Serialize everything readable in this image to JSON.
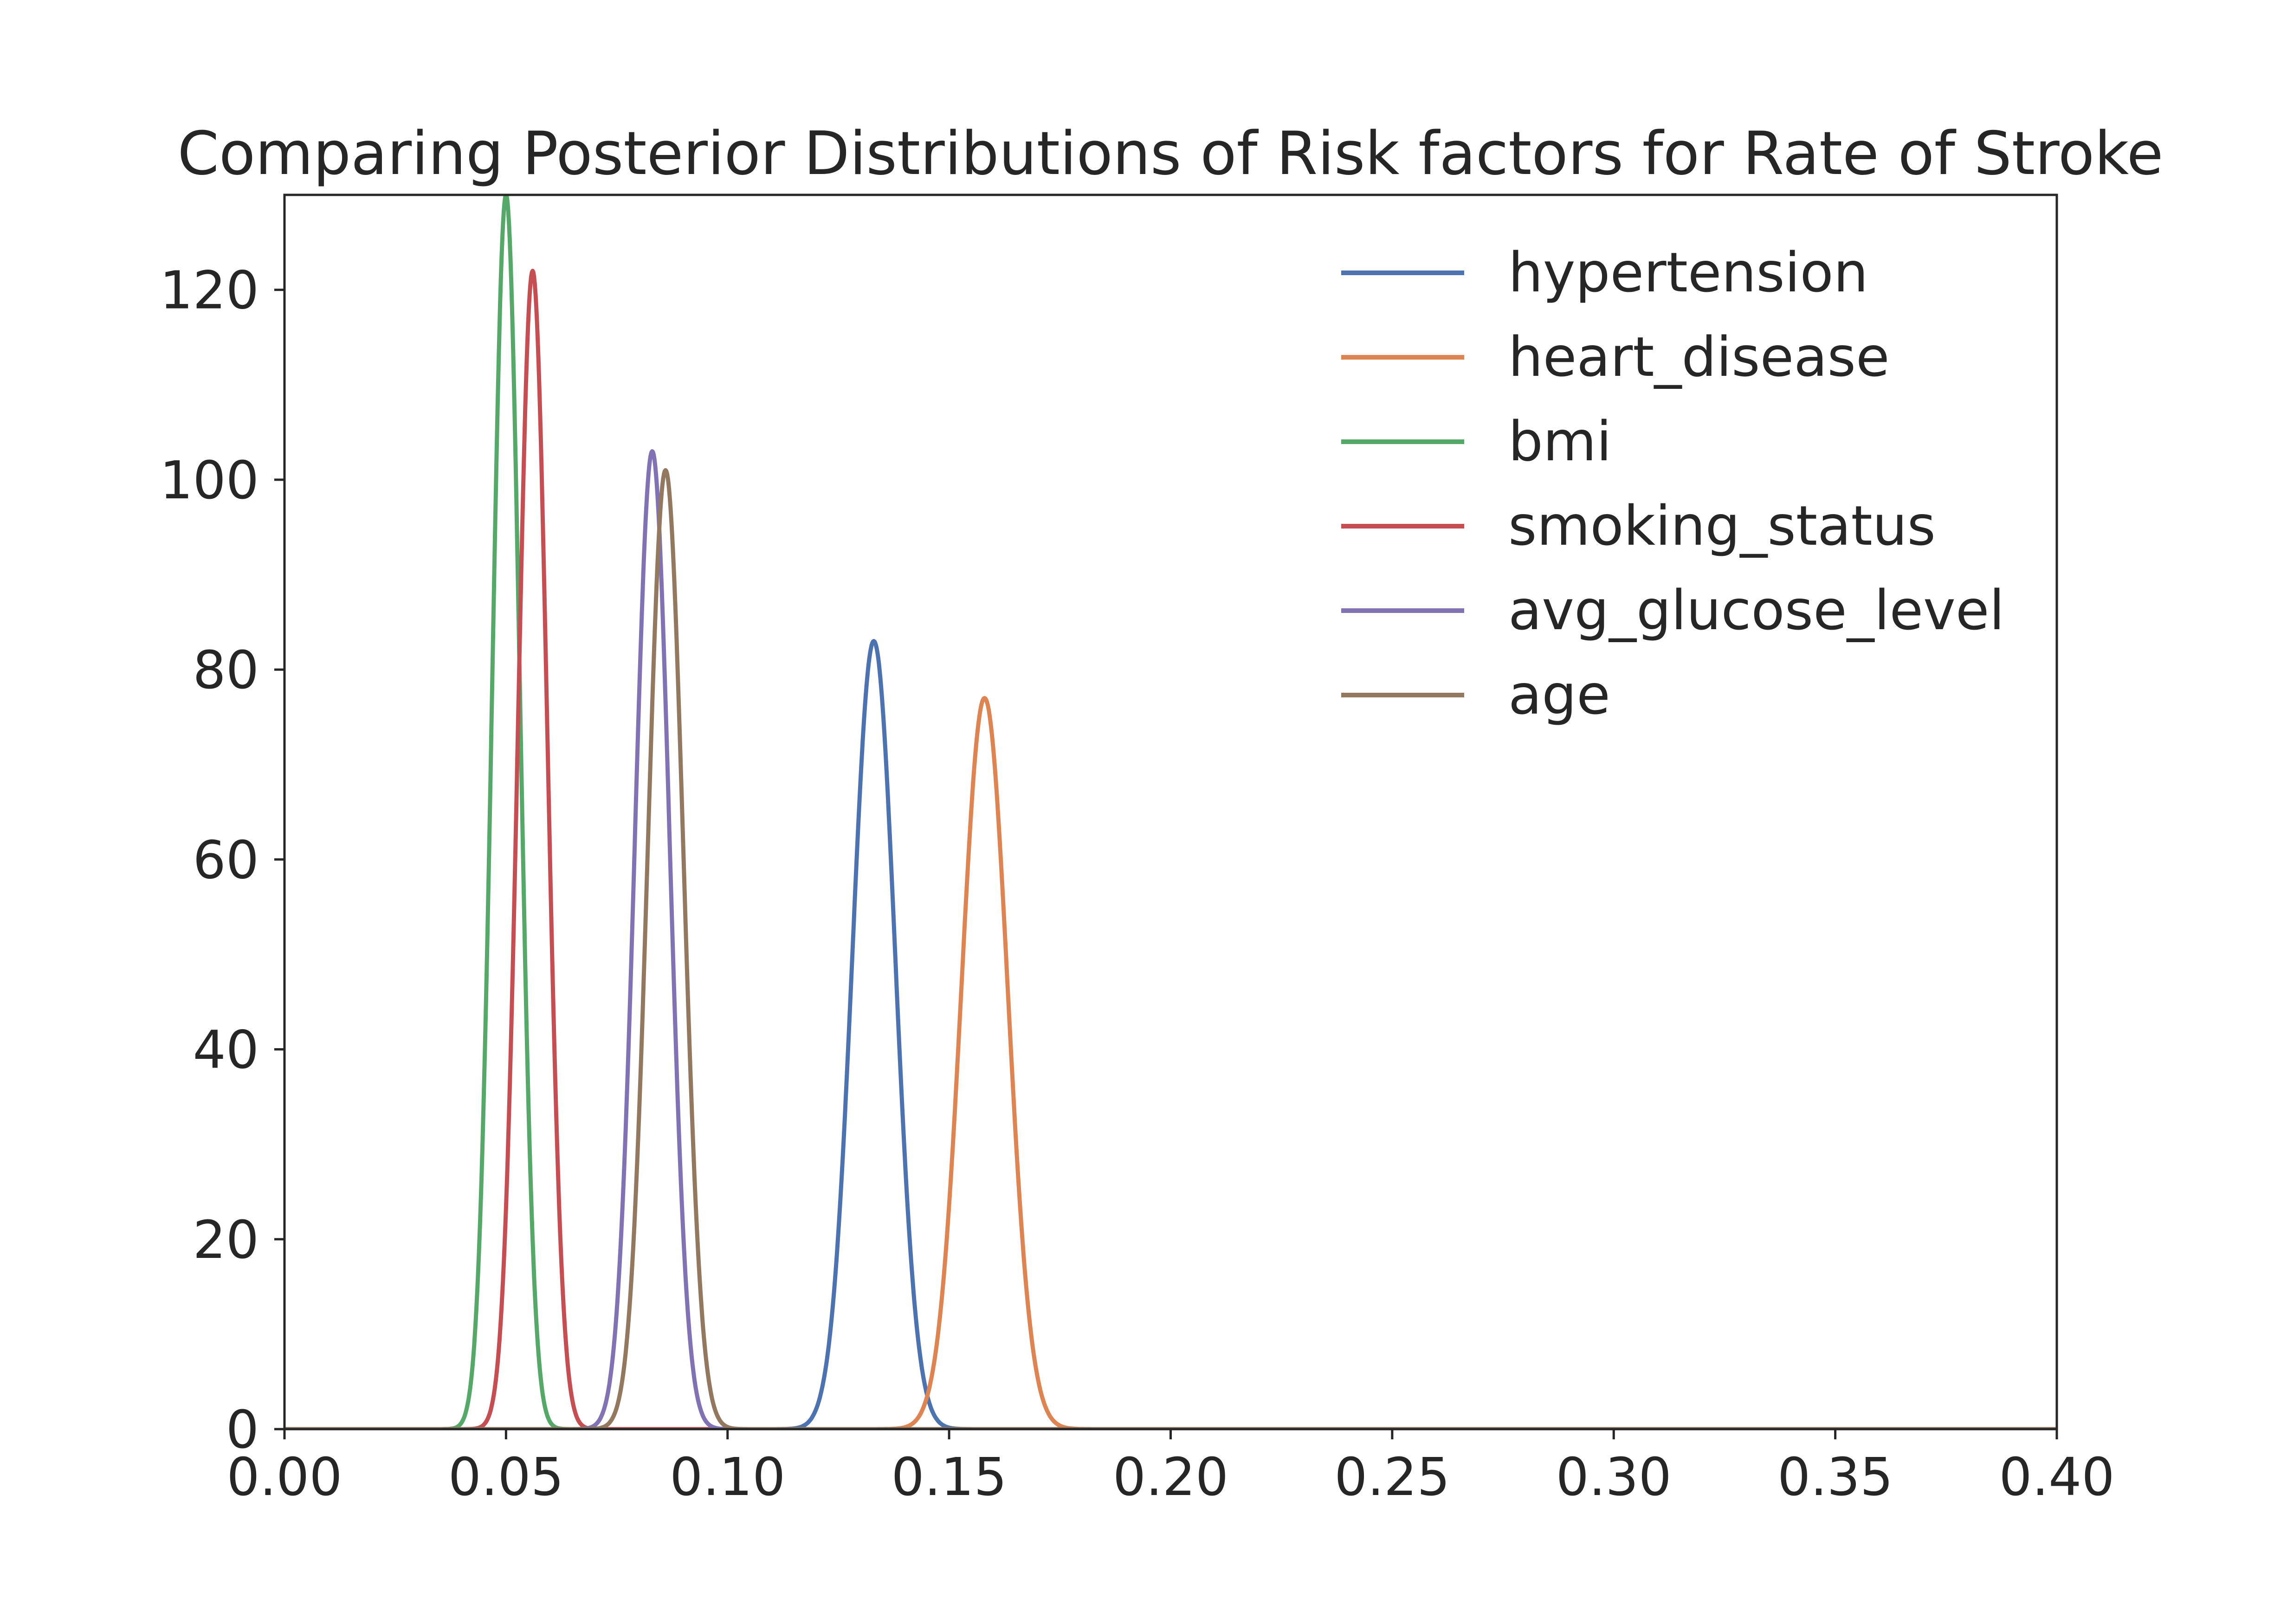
{
  "chart_data": {
    "type": "line",
    "title": "Comparing Posterior Distributions of Risk factors for Rate of Stroke",
    "xlabel": "",
    "ylabel": "",
    "xlim": [
      0.0,
      0.4
    ],
    "ylim": [
      0,
      130
    ],
    "xticks": [
      "0.00",
      "0.05",
      "0.10",
      "0.15",
      "0.20",
      "0.25",
      "0.30",
      "0.35",
      "0.40"
    ],
    "yticks": [
      "0",
      "20",
      "40",
      "60",
      "80",
      "100",
      "120"
    ],
    "grid": false,
    "legend_position": "top-right",
    "series": [
      {
        "name": "hypertension",
        "color": "#4c72b0",
        "peak_x": 0.133,
        "peak_y": 83,
        "sd": 0.0048
      },
      {
        "name": "heart_disease",
        "color": "#dd8452",
        "peak_x": 0.158,
        "peak_y": 77,
        "sd": 0.0052
      },
      {
        "name": "bmi",
        "color": "#55a868",
        "peak_x": 0.05,
        "peak_y": 130,
        "sd": 0.0031
      },
      {
        "name": "smoking_status",
        "color": "#c44e52",
        "peak_x": 0.056,
        "peak_y": 122,
        "sd": 0.0033
      },
      {
        "name": "avg_glucose_level",
        "color": "#8172b3",
        "peak_x": 0.083,
        "peak_y": 103,
        "sd": 0.0039
      },
      {
        "name": "age",
        "color": "#937860",
        "peak_x": 0.086,
        "peak_y": 101,
        "sd": 0.004
      }
    ]
  }
}
